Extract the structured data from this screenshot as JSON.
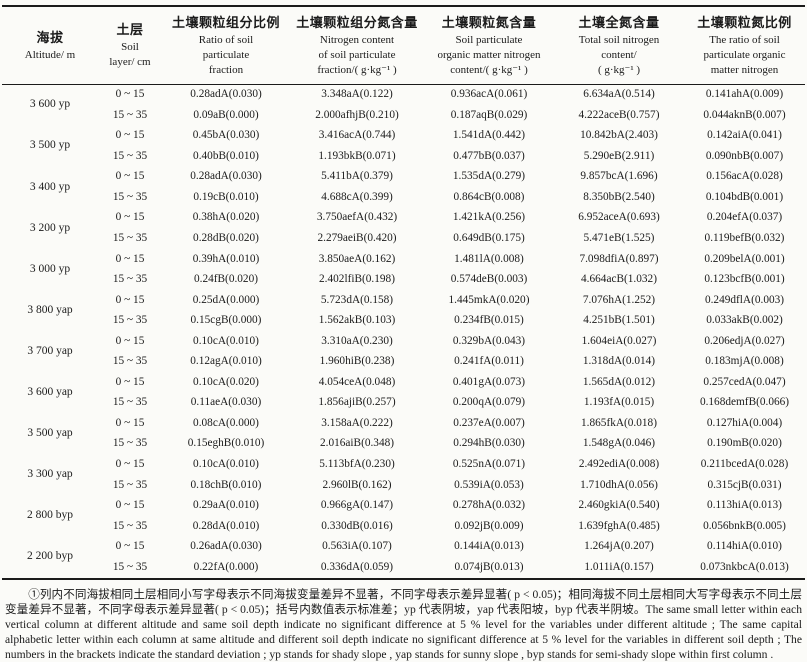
{
  "colors": {
    "text": "#1b1b1b",
    "rule": "#1b1b1b",
    "background": "#fbfbf8"
  },
  "table": {
    "header": {
      "cols": [
        {
          "cn": "海拔",
          "en": "Altitude/ m"
        },
        {
          "cn": "土层",
          "en": "Soil\nlayer/ cm"
        },
        {
          "cn": "土壤颗粒组分比例",
          "en": "Ratio of soil\nparticulate\nfraction"
        },
        {
          "cn": "土壤颗粒组分氮含量",
          "en": "Nitrogen content\nof soil particulate\nfraction/( g·kg⁻¹ )"
        },
        {
          "cn": "土壤颗粒氮含量",
          "en": "Soil particulate\norganic matter nitrogen\ncontent/( g·kg⁻¹ )"
        },
        {
          "cn": "土壤全氮含量",
          "en": "Total soil nitrogen\ncontent/\n( g·kg⁻¹ )"
        },
        {
          "cn": "土壤颗粒氮比例",
          "en": "The ratio of soil\nparticulate organic\nmatter nitrogen"
        }
      ]
    },
    "groups": [
      {
        "altitude": "3 600 yp",
        "rows": [
          {
            "depth": "0 ~ 15",
            "cells": [
              "0.28adA(0.030)",
              "3.348aA(0.122)",
              "0.936acA(0.061)",
              "6.634aA(0.514)",
              "0.141ahA(0.009)"
            ]
          },
          {
            "depth": "15 ~ 35",
            "cells": [
              "0.09aB(0.000)",
              "2.000afhjB(0.210)",
              "0.187aqB(0.029)",
              "4.222aceB(0.757)",
              "0.044aknB(0.007)"
            ]
          }
        ]
      },
      {
        "altitude": "3 500 yp",
        "rows": [
          {
            "depth": "0 ~ 15",
            "cells": [
              "0.45bA(0.030)",
              "3.416acA(0.744)",
              "1.541dA(0.442)",
              "10.842bA(2.403)",
              "0.142aiA(0.041)"
            ]
          },
          {
            "depth": "15 ~ 35",
            "cells": [
              "0.40bB(0.010)",
              "1.193bkB(0.071)",
              "0.477bB(0.037)",
              "5.290eB(2.911)",
              "0.090nbB(0.007)"
            ]
          }
        ]
      },
      {
        "altitude": "3 400 yp",
        "rows": [
          {
            "depth": "0 ~ 15",
            "cells": [
              "0.28adA(0.030)",
              "5.411bA(0.379)",
              "1.535dA(0.279)",
              "9.857bcA(1.696)",
              "0.156acA(0.028)"
            ]
          },
          {
            "depth": "15 ~ 35",
            "cells": [
              "0.19cB(0.010)",
              "4.688cA(0.399)",
              "0.864cB(0.008)",
              "8.350bB(2.540)",
              "0.104bdB(0.001)"
            ]
          }
        ]
      },
      {
        "altitude": "3 200 yp",
        "rows": [
          {
            "depth": "0 ~ 15",
            "cells": [
              "0.38hA(0.020)",
              "3.750aefA(0.432)",
              "1.421kA(0.256)",
              "6.952aceA(0.693)",
              "0.204efA(0.037)"
            ]
          },
          {
            "depth": "15 ~ 35",
            "cells": [
              "0.28dB(0.020)",
              "2.279aeiB(0.420)",
              "0.649dB(0.175)",
              "5.471eB(1.525)",
              "0.119befB(0.032)"
            ]
          }
        ]
      },
      {
        "altitude": "3 000 yp",
        "rows": [
          {
            "depth": "0 ~ 15",
            "cells": [
              "0.39hA(0.010)",
              "3.850aeA(0.162)",
              "1.481lA(0.008)",
              "7.098dfiA(0.897)",
              "0.209belA(0.001)"
            ]
          },
          {
            "depth": "15 ~ 35",
            "cells": [
              "0.24fB(0.020)",
              "2.402lfiB(0.198)",
              "0.574deB(0.003)",
              "4.664acB(1.032)",
              "0.123bcfB(0.001)"
            ]
          }
        ]
      },
      {
        "altitude": "3 800 yap",
        "rows": [
          {
            "depth": "0 ~ 15",
            "cells": [
              "0.25dA(0.000)",
              "5.723dA(0.158)",
              "1.445mkA(0.020)",
              "7.076hA(1.252)",
              "0.249dflA(0.003)"
            ]
          },
          {
            "depth": "15 ~ 35",
            "cells": [
              "0.15cgB(0.000)",
              "1.562akB(0.103)",
              "0.234fB(0.015)",
              "4.251bB(1.501)",
              "0.033akB(0.002)"
            ]
          }
        ]
      },
      {
        "altitude": "3 700 yap",
        "rows": [
          {
            "depth": "0 ~ 15",
            "cells": [
              "0.10cA(0.010)",
              "3.310aA(0.230)",
              "0.329bA(0.043)",
              "1.604eiA(0.027)",
              "0.206edjA(0.027)"
            ]
          },
          {
            "depth": "15 ~ 35",
            "cells": [
              "0.12agA(0.010)",
              "1.960hiB(0.238)",
              "0.241fA(0.011)",
              "1.318dA(0.014)",
              "0.183mjA(0.008)"
            ]
          }
        ]
      },
      {
        "altitude": "3 600 yap",
        "rows": [
          {
            "depth": "0 ~ 15",
            "cells": [
              "0.10cA(0.020)",
              "4.054ceA(0.048)",
              "0.401gA(0.073)",
              "1.565dA(0.012)",
              "0.257cedA(0.047)"
            ]
          },
          {
            "depth": "15 ~ 35",
            "cells": [
              "0.11aeA(0.030)",
              "1.856ajiB(0.257)",
              "0.200qA(0.079)",
              "1.193fA(0.015)",
              "0.168demfB(0.066)"
            ]
          }
        ]
      },
      {
        "altitude": "3 500 yap",
        "rows": [
          {
            "depth": "0 ~ 15",
            "cells": [
              "0.08cA(0.000)",
              "3.158aA(0.222)",
              "0.237eA(0.007)",
              "1.865fkA(0.018)",
              "0.127hiA(0.004)"
            ]
          },
          {
            "depth": "15 ~ 35",
            "cells": [
              "0.15eghB(0.010)",
              "2.016aiB(0.348)",
              "0.294hB(0.030)",
              "1.548gA(0.046)",
              "0.190mB(0.020)"
            ]
          }
        ]
      },
      {
        "altitude": "3 300 yap",
        "rows": [
          {
            "depth": "0 ~ 15",
            "cells": [
              "0.10cA(0.010)",
              "5.113bfA(0.230)",
              "0.525nA(0.071)",
              "2.492ediA(0.008)",
              "0.211bcedA(0.028)"
            ]
          },
          {
            "depth": "15 ~ 35",
            "cells": [
              "0.18chB(0.010)",
              "2.960lB(0.162)",
              "0.539iA(0.053)",
              "1.710dhA(0.056)",
              "0.315cjB(0.031)"
            ]
          }
        ]
      },
      {
        "altitude": "2 800 byp",
        "rows": [
          {
            "depth": "0 ~ 15",
            "cells": [
              "0.29aA(0.010)",
              "0.966gA(0.147)",
              "0.278hA(0.032)",
              "2.460gkiA(0.540)",
              "0.113hiA(0.013)"
            ]
          },
          {
            "depth": "15 ~ 35",
            "cells": [
              "0.28dA(0.010)",
              "0.330dB(0.016)",
              "0.092jB(0.009)",
              "1.639fghA(0.485)",
              "0.056bnkB(0.005)"
            ]
          }
        ]
      },
      {
        "altitude": "2 200 byp",
        "rows": [
          {
            "depth": "0 ~ 15",
            "cells": [
              "0.26adA(0.030)",
              "0.563iA(0.107)",
              "0.144iA(0.013)",
              "1.264jA(0.207)",
              "0.114hiA(0.010)"
            ]
          },
          {
            "depth": "15 ~ 35",
            "cells": [
              "0.22fA(0.000)",
              "0.336dA(0.059)",
              "0.074jB(0.013)",
              "1.011iA(0.157)",
              "0.073nkbcA(0.013)"
            ]
          }
        ]
      }
    ]
  },
  "footnote": {
    "text": "①列内不同海拔相同土层相同小写字母表示不同海拔变量差异不显著，不同字母表示差异显著( p < 0.05)；相同海拔不同土层相同大写字母表示不同土层变量差异不显著，不同字母表示差异显著( p < 0.05)；括号内数值表示标准差；yp 代表阴坡，yap 代表阳坡，byp 代表半阴坡。The same small letter within each vertical column at different altitude and same soil depth indicate no significant difference at 5 % level for the variables under different altitude ; The same capital alphabetic letter within each column at same altitude and different soil depth indicate no significant difference at 5 % level for the variables in different soil depth ; The numbers in the brackets indicate the standard deviation ; yp stands for shady slope , yap stands for sunny slope , byp stands for semi-shady slope within first column ."
  }
}
